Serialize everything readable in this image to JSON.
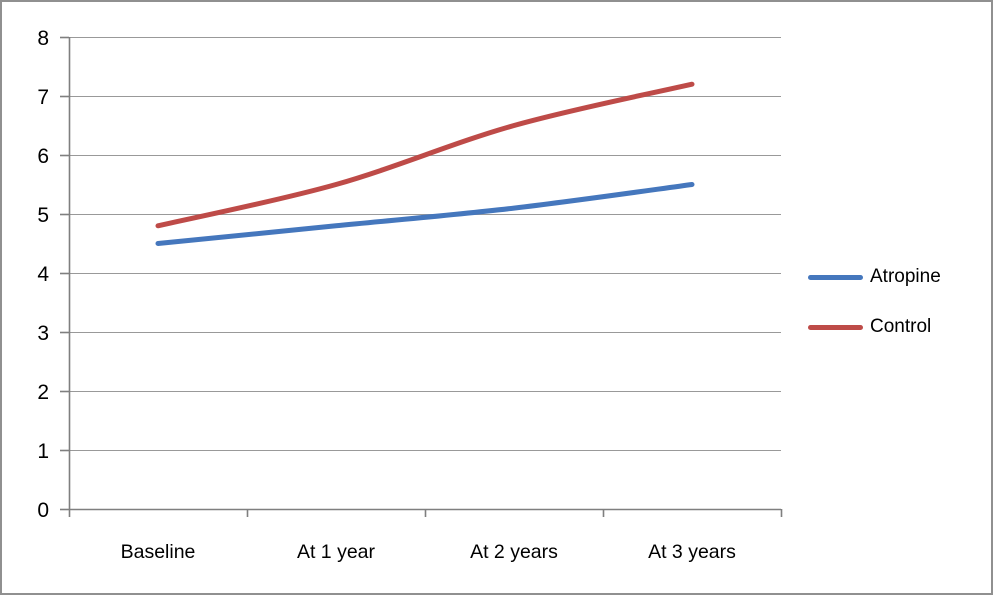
{
  "chart_data": {
    "type": "line",
    "line_style": "smooth",
    "title": "",
    "xlabel": "",
    "ylabel": "",
    "categories": [
      "Baseline",
      "At 1 year",
      "At 2 years",
      "At 3 years"
    ],
    "series": [
      {
        "name": "Atropine",
        "color": "#4577bd",
        "values": [
          4.5,
          4.8,
          5.1,
          5.5
        ]
      },
      {
        "name": "Control",
        "color": "#be4b48",
        "values": [
          4.8,
          5.5,
          6.5,
          7.2
        ]
      }
    ],
    "ylim": [
      0,
      8
    ],
    "yticks": [
      "0",
      "1",
      "2",
      "3",
      "4",
      "5",
      "6",
      "7",
      "8"
    ],
    "grid": true,
    "legend_position": "right",
    "grid_color": "#999999",
    "axis_color": "#7f7f7f",
    "text_color": "#000000"
  }
}
